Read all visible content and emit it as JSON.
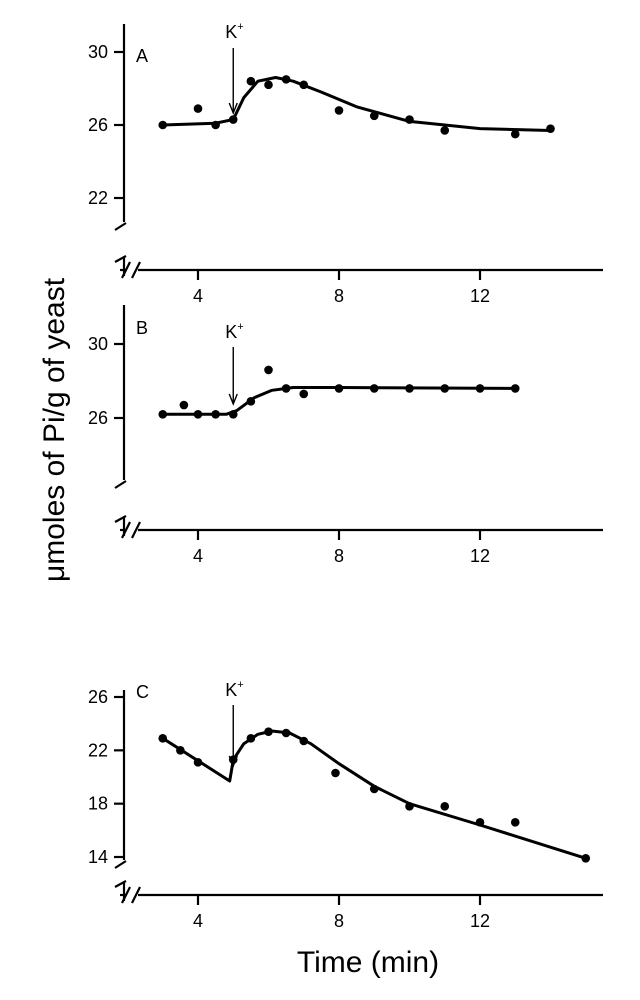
{
  "chart_data": [
    {
      "type": "line",
      "panel": "A",
      "annotation": {
        "label": "K",
        "superscript": "+",
        "x": 5
      },
      "y_ticks": [
        22,
        26,
        30
      ],
      "x_ticks": [
        4,
        8,
        12
      ],
      "ylim": [
        20,
        31
      ],
      "xlim": [
        2,
        15
      ],
      "points": [
        {
          "x": 3,
          "y": 26
        },
        {
          "x": 4,
          "y": 26.9
        },
        {
          "x": 4.5,
          "y": 26
        },
        {
          "x": 5,
          "y": 26.3
        },
        {
          "x": 5.5,
          "y": 28.4
        },
        {
          "x": 6,
          "y": 28.2
        },
        {
          "x": 6.5,
          "y": 28.5
        },
        {
          "x": 7,
          "y": 28.2
        },
        {
          "x": 8,
          "y": 26.8
        },
        {
          "x": 9,
          "y": 26.5
        },
        {
          "x": 10,
          "y": 26.3
        },
        {
          "x": 11,
          "y": 25.7
        },
        {
          "x": 13,
          "y": 25.5
        },
        {
          "x": 14,
          "y": 25.8
        }
      ],
      "curve": [
        {
          "x": 3,
          "y": 26
        },
        {
          "x": 4.5,
          "y": 26.1
        },
        {
          "x": 5,
          "y": 26.3
        },
        {
          "x": 5.3,
          "y": 27.5
        },
        {
          "x": 5.7,
          "y": 28.4
        },
        {
          "x": 6.2,
          "y": 28.6
        },
        {
          "x": 6.7,
          "y": 28.4
        },
        {
          "x": 7.5,
          "y": 27.8
        },
        {
          "x": 8.5,
          "y": 27
        },
        {
          "x": 10,
          "y": 26.2
        },
        {
          "x": 12,
          "y": 25.8
        },
        {
          "x": 14,
          "y": 25.7
        }
      ]
    },
    {
      "type": "line",
      "panel": "B",
      "annotation": {
        "label": "K",
        "superscript": "+",
        "x": 5
      },
      "y_ticks": [
        26,
        30
      ],
      "x_ticks": [
        4,
        8,
        12
      ],
      "ylim": [
        22.5,
        31
      ],
      "xlim": [
        2,
        15
      ],
      "points": [
        {
          "x": 3,
          "y": 26.2
        },
        {
          "x": 3.6,
          "y": 26.7
        },
        {
          "x": 4,
          "y": 26.2
        },
        {
          "x": 4.5,
          "y": 26.2
        },
        {
          "x": 5,
          "y": 26.2
        },
        {
          "x": 5.5,
          "y": 26.9
        },
        {
          "x": 6,
          "y": 28.6
        },
        {
          "x": 6.5,
          "y": 27.6
        },
        {
          "x": 7,
          "y": 27.3
        },
        {
          "x": 8,
          "y": 27.6
        },
        {
          "x": 9,
          "y": 27.6
        },
        {
          "x": 10,
          "y": 27.6
        },
        {
          "x": 11,
          "y": 27.6
        },
        {
          "x": 12,
          "y": 27.6
        },
        {
          "x": 13,
          "y": 27.6
        }
      ],
      "curve": [
        {
          "x": 3,
          "y": 26.2
        },
        {
          "x": 4.8,
          "y": 26.2
        },
        {
          "x": 5.1,
          "y": 26.4
        },
        {
          "x": 5.6,
          "y": 27.1
        },
        {
          "x": 6.1,
          "y": 27.5
        },
        {
          "x": 6.7,
          "y": 27.65
        },
        {
          "x": 8,
          "y": 27.65
        },
        {
          "x": 13,
          "y": 27.6
        }
      ]
    },
    {
      "type": "line",
      "panel": "C",
      "annotation": {
        "label": "K",
        "superscript": "+",
        "x": 5
      },
      "y_ticks": [
        14,
        18,
        22,
        26
      ],
      "x_ticks": [
        4,
        8,
        12
      ],
      "ylim": [
        11,
        27
      ],
      "xlim": [
        2,
        15.5
      ],
      "points": [
        {
          "x": 3,
          "y": 22.9
        },
        {
          "x": 3.5,
          "y": 22
        },
        {
          "x": 4,
          "y": 21.1
        },
        {
          "x": 5,
          "y": 21.3
        },
        {
          "x": 5.5,
          "y": 22.9
        },
        {
          "x": 6,
          "y": 23.4
        },
        {
          "x": 6.5,
          "y": 23.3
        },
        {
          "x": 7,
          "y": 22.7
        },
        {
          "x": 7.9,
          "y": 20.3
        },
        {
          "x": 9,
          "y": 19.1
        },
        {
          "x": 10,
          "y": 17.8
        },
        {
          "x": 11,
          "y": 17.8
        },
        {
          "x": 12,
          "y": 16.6
        },
        {
          "x": 13,
          "y": 16.6
        },
        {
          "x": 15,
          "y": 13.9
        }
      ],
      "curve": [
        {
          "x": 3,
          "y": 22.9
        },
        {
          "x": 4.9,
          "y": 19.7
        },
        {
          "x": 5,
          "y": 21.3
        },
        {
          "x": 5.3,
          "y": 22.5
        },
        {
          "x": 5.7,
          "y": 23.2
        },
        {
          "x": 6.1,
          "y": 23.45
        },
        {
          "x": 6.6,
          "y": 23.3
        },
        {
          "x": 7.2,
          "y": 22.5
        },
        {
          "x": 8,
          "y": 21
        },
        {
          "x": 9,
          "y": 19.3
        },
        {
          "x": 10,
          "y": 18
        },
        {
          "x": 12,
          "y": 16.4
        },
        {
          "x": 15,
          "y": 13.9
        }
      ]
    }
  ],
  "ylabel": "μmoles of Pi/g of yeast",
  "xlabel": "Time (min)"
}
